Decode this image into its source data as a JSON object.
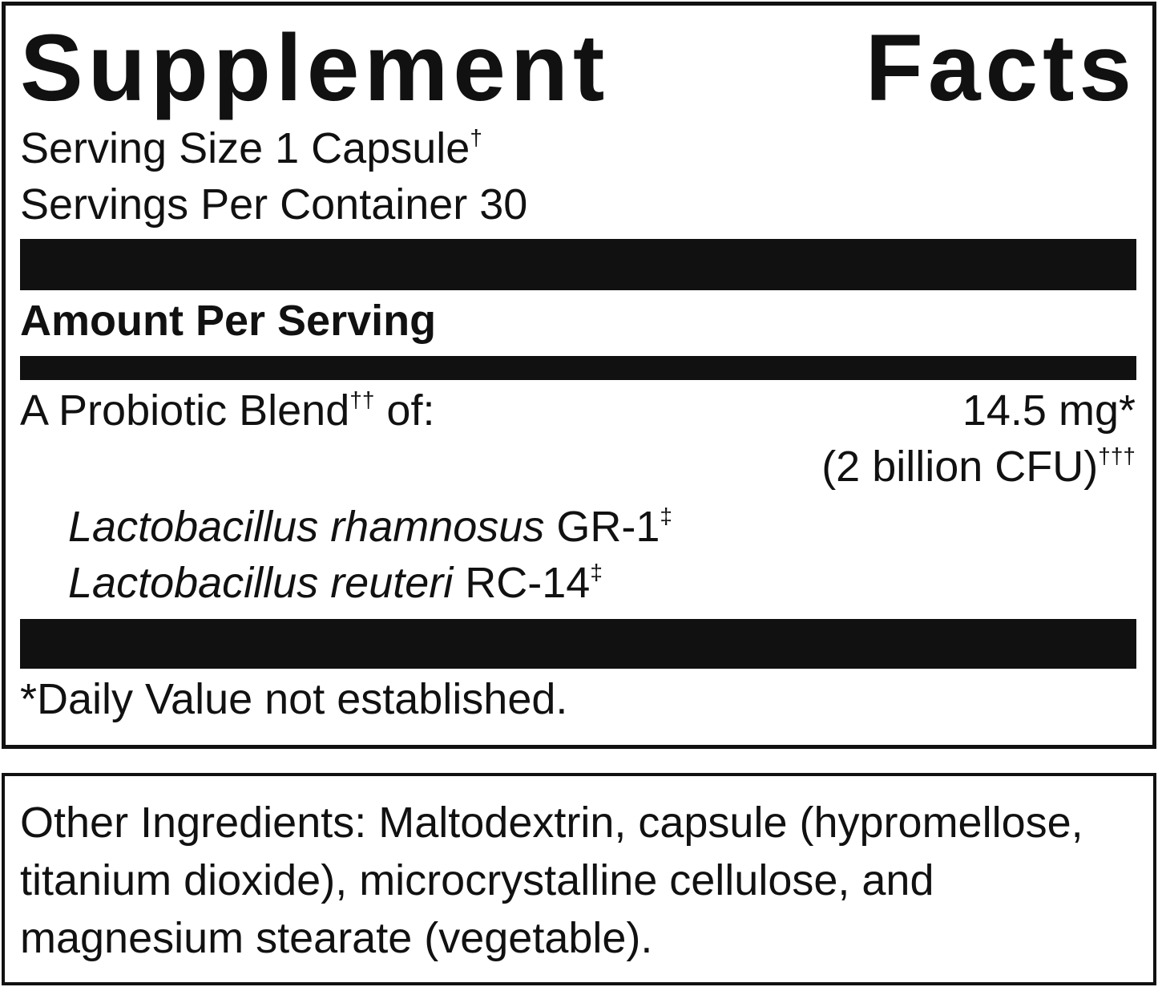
{
  "title": "Supplement Facts",
  "serving": [
    {
      "text": "Serving Size 1 Capsule",
      "sup": "†"
    },
    {
      "text": "Servings Per Container 30"
    }
  ],
  "amount_header": "Amount Per Serving",
  "blend": {
    "name": "A Probiotic Blend",
    "sup": "††",
    "suffix": " of:",
    "amount": "14.5 mg*",
    "cfu": "(2 billion CFU)",
    "cfu_sup": "†††"
  },
  "strains": [
    {
      "species": "Lactobacillus rhamnosus",
      "strain": " GR-1",
      "sup": "‡"
    },
    {
      "species": "Lactobacillus reuteri",
      "strain": " RC-14",
      "sup": "‡"
    }
  ],
  "footnote": "*Daily Value not established.",
  "other_ingredients": "Other Ingredients: Maltodextrin, capsule (hypromellose, titanium dioxide), microcrystalline cellulose, and magnesium stearate (vegetable)."
}
